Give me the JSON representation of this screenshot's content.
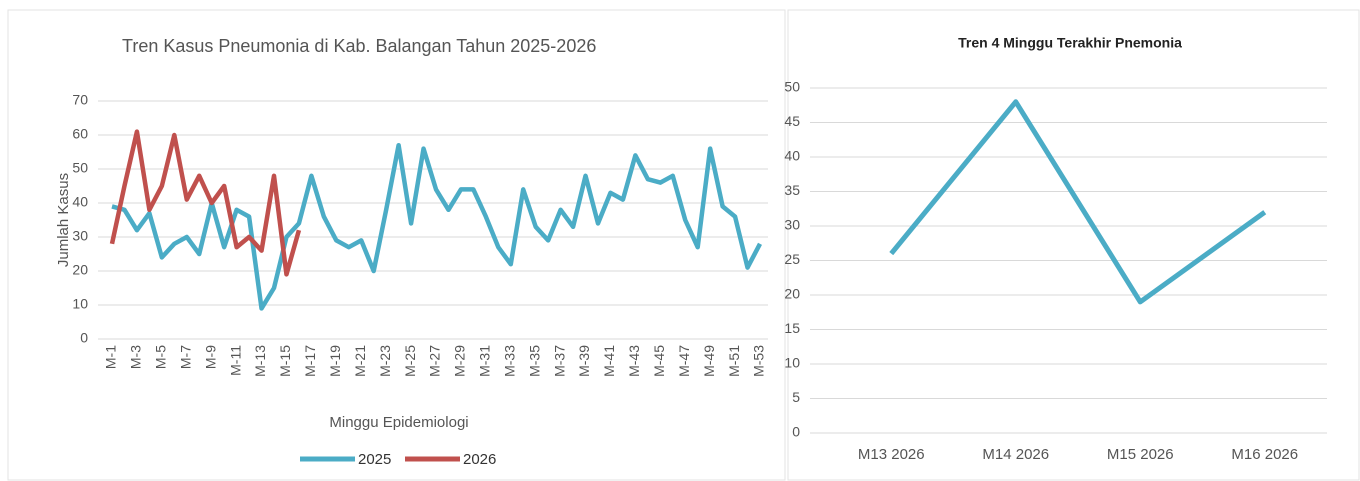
{
  "chart_data": [
    {
      "type": "line",
      "title": "Tren Kasus Pneumonia di Kab. Balangan Tahun 2025-2026",
      "x_label": "Minggu Epidemiologi",
      "y_label": "Jumlah Kasus",
      "categories": [
        "M-1",
        null,
        "M-3",
        null,
        "M-5",
        null,
        "M-7",
        null,
        "M-9",
        null,
        "M-11",
        null,
        "M-13",
        null,
        "M-15",
        null,
        "M-17",
        null,
        "M-19",
        null,
        "M-21",
        null,
        "M-23",
        null,
        "M-25",
        null,
        "M-27",
        null,
        "M-29",
        null,
        "M-31",
        null,
        "M-33",
        null,
        "M-35",
        null,
        "M-37",
        null,
        "M-39",
        null,
        "M-41",
        null,
        "M-43",
        null,
        "M-45",
        null,
        "M-47",
        null,
        "M-49",
        null,
        "M-51",
        null,
        "M-53"
      ],
      "series": [
        {
          "name": "2025",
          "color": "#4bacc6",
          "values": [
            39,
            38,
            32,
            37,
            24,
            28,
            30,
            25,
            40,
            27,
            38,
            36,
            9,
            15,
            30,
            34,
            48,
            36,
            29,
            27,
            29,
            20,
            38,
            57,
            34,
            56,
            44,
            38,
            44,
            44,
            36,
            27,
            22,
            44,
            33,
            29,
            38,
            33,
            48,
            34,
            43,
            41,
            54,
            47,
            46,
            48,
            35,
            27,
            56,
            39,
            36,
            21,
            28
          ]
        },
        {
          "name": "2026",
          "color": "#c0504d",
          "values": [
            28,
            45,
            61,
            38,
            45,
            60,
            41,
            48,
            40,
            45,
            27,
            30,
            26,
            48,
            19,
            32,
            null,
            null,
            null,
            null,
            null,
            null,
            null,
            null,
            null,
            null,
            null,
            null,
            null,
            null,
            null,
            null,
            null,
            null,
            null,
            null,
            null,
            null,
            null,
            null,
            null,
            null,
            null,
            null,
            null,
            null,
            null,
            null,
            null,
            null,
            null,
            null,
            null
          ]
        }
      ],
      "ylim": [
        0,
        70
      ],
      "yticks": [
        0,
        10,
        20,
        30,
        40,
        50,
        60,
        70
      ],
      "grid": true,
      "legend": "bottom"
    },
    {
      "type": "line",
      "title": "Tren 4 Minggu Terakhir Pnemonia",
      "categories": [
        "M13 2026",
        "M14 2026",
        "M15 2026",
        "M16 2026"
      ],
      "values": [
        26,
        48,
        19,
        32
      ],
      "color": "#4bacc6",
      "ylim": [
        0,
        50
      ],
      "yticks": [
        0,
        5,
        10,
        15,
        20,
        25,
        30,
        35,
        40,
        45,
        50
      ],
      "grid": true
    }
  ]
}
